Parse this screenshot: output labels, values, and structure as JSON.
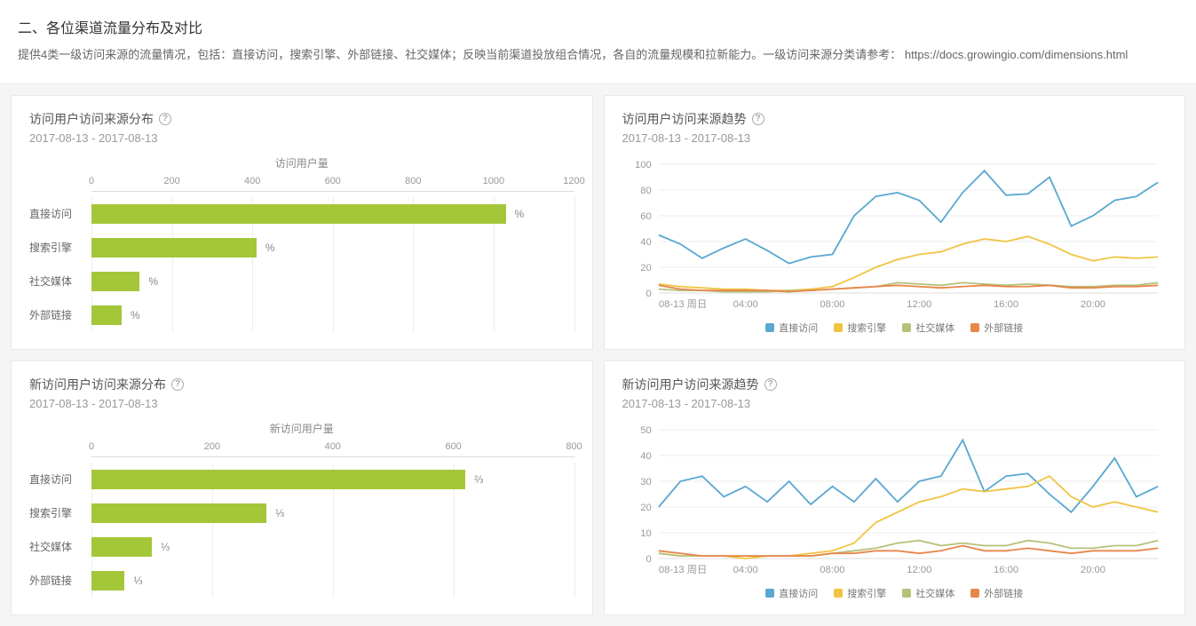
{
  "header": {
    "title": "二、各位渠道流量分布及对比",
    "description": "提供4类一级访问来源的流量情况，包括：直接访问，搜索引擎、外部链接、社交媒体；反映当前渠道投放组合情况，各自的流量规模和拉新能力。一级访问来源分类请参考：",
    "link": "https://docs.growingio.com/dimensions.html"
  },
  "colors": {
    "bar": "#a4c639",
    "series": {
      "direct": "#5aa8d0",
      "search": "#f0c443",
      "social": "#b6c178",
      "external": "#e8864a"
    },
    "text_muted": "#999",
    "grid": "#eee"
  },
  "cards": {
    "bar1": {
      "title": "访问用户访问来源分布",
      "date": "2017-08-13 - 2017-08-13",
      "axis_title": "访问用户量",
      "xmax": 1200,
      "xstep": 200,
      "categories": [
        "直接访问",
        "搜索引擎",
        "社交媒体",
        "外部链接"
      ],
      "values": [
        1030,
        410,
        120,
        75
      ],
      "pct_labels": [
        "%",
        "%",
        "%",
        "%"
      ]
    },
    "bar2": {
      "title": "新访问用户访问来源分布",
      "date": "2017-08-13 - 2017-08-13",
      "axis_title": "新访问用户量",
      "xmax": 800,
      "xstep": 200,
      "categories": [
        "直接访问",
        "搜索引擎",
        "社交媒体",
        "外部链接"
      ],
      "values": [
        620,
        290,
        100,
        55
      ],
      "pct_labels": [
        "⅔",
        "⅓",
        "⅓",
        "⅓"
      ]
    },
    "line1": {
      "title": "访问用户访问来源趋势",
      "date": "2017-08-13 - 2017-08-13",
      "ymax": 100,
      "ystep": 20,
      "x_labels": [
        "08-13 周日",
        "04:00",
        "08:00",
        "12:00",
        "16:00",
        "20:00"
      ],
      "x_label_indices": [
        0,
        4,
        8,
        12,
        16,
        20
      ],
      "x_count": 24,
      "legend": [
        "直接访问",
        "搜索引擎",
        "社交媒体",
        "外部链接"
      ],
      "series": {
        "direct": [
          45,
          38,
          27,
          35,
          42,
          33,
          23,
          28,
          30,
          60,
          75,
          78,
          72,
          55,
          78,
          95,
          76,
          77,
          90,
          52,
          60,
          72,
          75,
          86
        ],
        "search": [
          7,
          5,
          4,
          3,
          3,
          2,
          2,
          3,
          5,
          12,
          20,
          26,
          30,
          32,
          38,
          42,
          40,
          44,
          38,
          30,
          25,
          28,
          27,
          28
        ],
        "social": [
          3,
          2,
          2,
          1,
          1,
          1,
          2,
          2,
          3,
          4,
          5,
          8,
          7,
          6,
          8,
          7,
          6,
          7,
          6,
          5,
          5,
          6,
          6,
          8
        ],
        "external": [
          6,
          3,
          2,
          2,
          2,
          2,
          1,
          2,
          3,
          4,
          5,
          6,
          5,
          4,
          5,
          6,
          5,
          5,
          6,
          4,
          4,
          5,
          5,
          6
        ]
      }
    },
    "line2": {
      "title": "新访问用户访问来源趋势",
      "date": "2017-08-13 - 2017-08-13",
      "ymax": 50,
      "ystep": 10,
      "x_labels": [
        "08-13 周日",
        "04:00",
        "08:00",
        "12:00",
        "16:00",
        "20:00"
      ],
      "x_label_indices": [
        0,
        4,
        8,
        12,
        16,
        20
      ],
      "x_count": 24,
      "legend": [
        "直接访问",
        "搜索引擎",
        "社交媒体",
        "外部链接"
      ],
      "series": {
        "direct": [
          20,
          30,
          32,
          24,
          28,
          22,
          30,
          21,
          28,
          22,
          31,
          22,
          30,
          32,
          46,
          26,
          32,
          33,
          25,
          18,
          28,
          39,
          24,
          28
        ],
        "search": [
          2,
          1,
          1,
          1,
          0,
          1,
          1,
          2,
          3,
          6,
          14,
          18,
          22,
          24,
          27,
          26,
          27,
          28,
          32,
          24,
          20,
          22,
          20,
          18
        ],
        "social": [
          2,
          1,
          1,
          1,
          1,
          1,
          1,
          1,
          2,
          3,
          4,
          6,
          7,
          5,
          6,
          5,
          5,
          7,
          6,
          4,
          4,
          5,
          5,
          7
        ],
        "external": [
          3,
          2,
          1,
          1,
          1,
          1,
          1,
          1,
          2,
          2,
          3,
          3,
          2,
          3,
          5,
          3,
          3,
          4,
          3,
          2,
          3,
          3,
          3,
          4
        ]
      }
    }
  }
}
